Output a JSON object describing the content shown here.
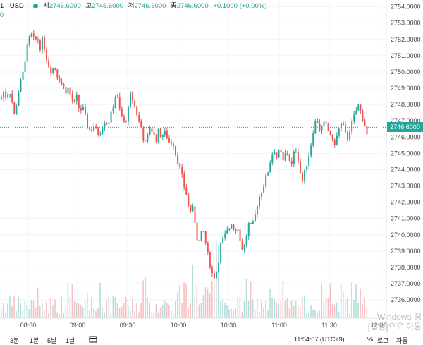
{
  "header": {
    "symbol": "1 · USD",
    "open_label": "시",
    "open": "2746.6000",
    "high_label": "고",
    "high": "2746.6000",
    "low_label": "저",
    "low": "2746.6000",
    "close_label": "종",
    "close": "2746.6000",
    "change": "+0.1000 (+0.00%)"
  },
  "left_edge_value": "0",
  "current_price": "2746.6000",
  "bottom": {
    "ranges": [
      "3분",
      "1분",
      "5날",
      "1날"
    ],
    "time": "11:54:07 (UTC+9)",
    "percent": "%",
    "log": "로그",
    "auto": "자동"
  },
  "watermark": "Windows 정\n[설정]으로 이동",
  "colors": {
    "up": "#26a69a",
    "down": "#ef5350",
    "vol_up": "#b2dfdb",
    "vol_down": "#f8c0c0",
    "price_line": "#26a69a",
    "grid": "#f0f3fa"
  },
  "chart_data": {
    "type": "candlestick",
    "y_ticks": [
      "2754.0000",
      "2753.0000",
      "2752.0000",
      "2751.0000",
      "2750.0000",
      "2749.0000",
      "2748.0000",
      "2747.0000",
      "2746.0000",
      "2745.0000",
      "2744.0000",
      "2743.0000",
      "2742.0000",
      "2741.0000",
      "2740.0000",
      "2739.0000",
      "2738.0000",
      "2737.0000",
      "2736.0000"
    ],
    "ylim": [
      2735.7,
      2754.2
    ],
    "x_ticks": [
      "08:30",
      "09:00",
      "09:30",
      "10:00",
      "10:30",
      "11:00",
      "11:30",
      "12:00"
    ],
    "current_price": 2746.6,
    "close_path": [
      [
        0,
        2748.3
      ],
      [
        4,
        2748.8
      ],
      [
        8,
        2748.4
      ],
      [
        12,
        2749.0
      ],
      [
        16,
        2748.2
      ],
      [
        20,
        2747.2
      ],
      [
        24,
        2748.6
      ],
      [
        28,
        2749.3
      ],
      [
        32,
        2750.0
      ],
      [
        36,
        2751.2
      ],
      [
        40,
        2752.0
      ],
      [
        44,
        2752.3
      ],
      [
        48,
        2751.9
      ],
      [
        52,
        2752.1
      ],
      [
        56,
        2751.5
      ],
      [
        60,
        2752.1
      ],
      [
        64,
        2751.0
      ],
      [
        68,
        2750.4
      ],
      [
        72,
        2750.0
      ],
      [
        76,
        2750.4
      ],
      [
        80,
        2749.8
      ],
      [
        84,
        2749.5
      ],
      [
        88,
        2749.1
      ],
      [
        92,
        2748.8
      ],
      [
        96,
        2749.0
      ],
      [
        100,
        2748.4
      ],
      [
        104,
        2748.0
      ],
      [
        108,
        2748.5
      ],
      [
        112,
        2747.5
      ],
      [
        116,
        2747.9
      ],
      [
        120,
        2747.2
      ],
      [
        124,
        2746.5
      ],
      [
        128,
        2746.4
      ],
      [
        132,
        2746.7
      ],
      [
        136,
        2746.3
      ],
      [
        140,
        2746.2
      ],
      [
        144,
        2746.7
      ],
      [
        148,
        2747.0
      ],
      [
        152,
        2746.8
      ],
      [
        156,
        2747.3
      ],
      [
        160,
        2748.0
      ],
      [
        164,
        2748.8
      ],
      [
        168,
        2747.8
      ],
      [
        172,
        2747.2
      ],
      [
        176,
        2746.8
      ],
      [
        180,
        2747.4
      ],
      [
        184,
        2748.6
      ],
      [
        188,
        2748.2
      ],
      [
        192,
        2747.6
      ],
      [
        196,
        2747.0
      ],
      [
        200,
        2746.5
      ],
      [
        204,
        2745.5
      ],
      [
        208,
        2745.9
      ],
      [
        212,
        2746.7
      ],
      [
        216,
        2746.2
      ],
      [
        220,
        2745.8
      ],
      [
        224,
        2746.4
      ],
      [
        228,
        2746.0
      ],
      [
        232,
        2746.3
      ],
      [
        236,
        2746.0
      ],
      [
        240,
        2745.6
      ],
      [
        244,
        2745.8
      ],
      [
        248,
        2745.0
      ],
      [
        252,
        2744.4
      ],
      [
        256,
        2743.8
      ],
      [
        260,
        2743.0
      ],
      [
        264,
        2742.4
      ],
      [
        268,
        2741.4
      ],
      [
        272,
        2741.7
      ],
      [
        276,
        2740.7
      ],
      [
        280,
        2739.3
      ],
      [
        284,
        2740.0
      ],
      [
        288,
        2740.2
      ],
      [
        292,
        2739.2
      ],
      [
        296,
        2738.3
      ],
      [
        300,
        2737.6
      ],
      [
        304,
        2737.4
      ],
      [
        308,
        2738.1
      ],
      [
        312,
        2739.4
      ],
      [
        316,
        2739.8
      ],
      [
        320,
        2740.1
      ],
      [
        324,
        2740.4
      ],
      [
        328,
        2740.8
      ],
      [
        332,
        2740.2
      ],
      [
        336,
        2740.6
      ],
      [
        340,
        2739.5
      ],
      [
        344,
        2739.0
      ],
      [
        348,
        2739.8
      ],
      [
        352,
        2740.7
      ],
      [
        356,
        2740.4
      ],
      [
        360,
        2741.0
      ],
      [
        364,
        2741.9
      ],
      [
        368,
        2742.5
      ],
      [
        372,
        2742.9
      ],
      [
        376,
        2743.5
      ],
      [
        380,
        2744.0
      ],
      [
        384,
        2744.9
      ],
      [
        388,
        2745.2
      ],
      [
        392,
        2744.7
      ],
      [
        396,
        2745.3
      ],
      [
        400,
        2744.4
      ],
      [
        404,
        2745.0
      ],
      [
        408,
        2745.0
      ],
      [
        412,
        2744.1
      ],
      [
        416,
        2745.0
      ],
      [
        420,
        2745.3
      ],
      [
        424,
        2744.0
      ],
      [
        428,
        2743.3
      ],
      [
        432,
        2744.0
      ],
      [
        436,
        2744.7
      ],
      [
        440,
        2745.5
      ],
      [
        444,
        2746.6
      ],
      [
        448,
        2747.2
      ],
      [
        452,
        2746.5
      ],
      [
        456,
        2746.6
      ],
      [
        460,
        2746.9
      ],
      [
        464,
        2746.4
      ],
      [
        468,
        2746.2
      ],
      [
        472,
        2745.4
      ],
      [
        476,
        2745.9
      ],
      [
        480,
        2746.5
      ],
      [
        484,
        2746.9
      ],
      [
        488,
        2746.3
      ],
      [
        492,
        2745.9
      ],
      [
        496,
        2746.6
      ],
      [
        500,
        2747.1
      ],
      [
        504,
        2747.6
      ],
      [
        508,
        2748.0
      ],
      [
        512,
        2747.3
      ],
      [
        516,
        2746.8
      ],
      [
        520,
        2746.0
      ],
      [
        524,
        2746.6
      ]
    ]
  }
}
